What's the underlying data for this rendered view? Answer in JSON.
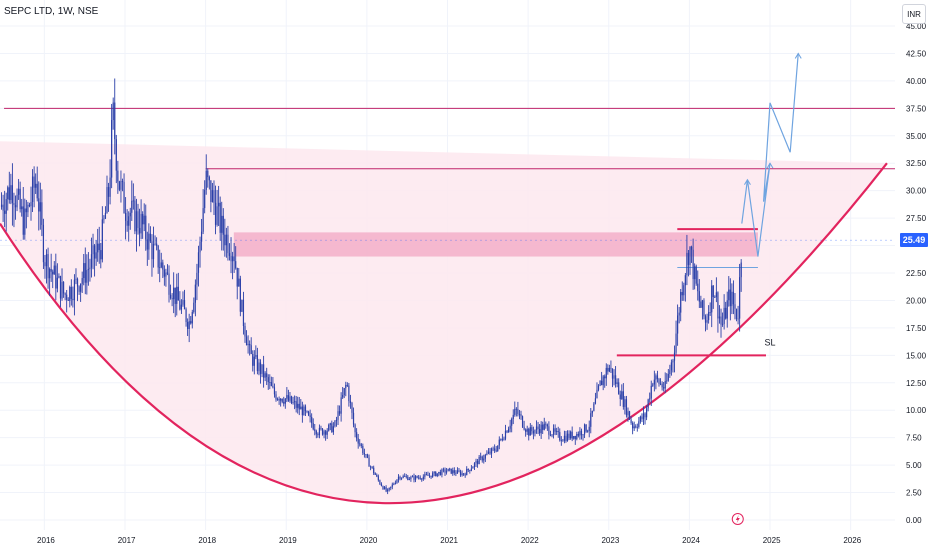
{
  "header": {
    "title": "SEPC LTD, 1W, NSE",
    "currency": "INR",
    "last_price": "25.49"
  },
  "colors": {
    "candle": "#2a3fa8",
    "cup_line": "#e2245e",
    "cup_fill": "#fde7ee",
    "zone": "#f2a7c3",
    "hline": "#c0246a",
    "projection": "#6fa4e0",
    "grid": "#f0f3fa",
    "price_tag": "#2962ff"
  },
  "chart_data": {
    "type": "candlestick",
    "title": "SEPC LTD, 1W, NSE",
    "x_ticks": [
      "2016",
      "2017",
      "2018",
      "2019",
      "2020",
      "2021",
      "2022",
      "2023",
      "2024",
      "2025",
      "2026"
    ],
    "y_ticks": [
      "0.00",
      "2.50",
      "5.00",
      "7.50",
      "10.00",
      "12.50",
      "15.00",
      "17.50",
      "20.00",
      "22.50",
      "25.00",
      "27.50",
      "30.00",
      "32.50",
      "35.00",
      "37.50",
      "40.00",
      "42.50",
      "45.00"
    ],
    "ylim": [
      0,
      45
    ],
    "xlim": [
      2015.45,
      2026.55
    ],
    "price_path": [
      [
        2015.45,
        28.5
      ],
      [
        2015.6,
        30.5
      ],
      [
        2015.75,
        27.0
      ],
      [
        2015.9,
        31.0
      ],
      [
        2016.0,
        24.0
      ],
      [
        2016.1,
        22.5
      ],
      [
        2016.25,
        20.5
      ],
      [
        2016.4,
        21.5
      ],
      [
        2016.55,
        23.0
      ],
      [
        2016.7,
        25.0
      ],
      [
        2016.8,
        30.0
      ],
      [
        2016.85,
        37.0
      ],
      [
        2016.92,
        31.0
      ],
      [
        2017.0,
        28.5
      ],
      [
        2017.2,
        27.0
      ],
      [
        2017.35,
        24.5
      ],
      [
        2017.5,
        22.5
      ],
      [
        2017.65,
        20.0
      ],
      [
        2017.8,
        18.0
      ],
      [
        2017.9,
        23.0
      ],
      [
        2018.0,
        31.0
      ],
      [
        2018.1,
        29.0
      ],
      [
        2018.2,
        26.5
      ],
      [
        2018.35,
        24.5
      ],
      [
        2018.45,
        19.0
      ],
      [
        2018.55,
        15.0
      ],
      [
        2018.7,
        13.5
      ],
      [
        2018.85,
        11.5
      ],
      [
        2019.0,
        11.0
      ],
      [
        2019.2,
        10.0
      ],
      [
        2019.4,
        8.0
      ],
      [
        2019.6,
        8.5
      ],
      [
        2019.75,
        12.5
      ],
      [
        2019.85,
        8.0
      ],
      [
        2020.0,
        5.5
      ],
      [
        2020.15,
        3.5
      ],
      [
        2020.25,
        2.5
      ],
      [
        2020.4,
        4.0
      ],
      [
        2020.55,
        3.8
      ],
      [
        2020.75,
        4.0
      ],
      [
        2021.0,
        4.5
      ],
      [
        2021.2,
        4.2
      ],
      [
        2021.4,
        5.5
      ],
      [
        2021.6,
        6.5
      ],
      [
        2021.75,
        8.5
      ],
      [
        2021.85,
        10.0
      ],
      [
        2022.0,
        8.0
      ],
      [
        2022.2,
        8.5
      ],
      [
        2022.4,
        7.5
      ],
      [
        2022.6,
        7.8
      ],
      [
        2022.75,
        8.5
      ],
      [
        2022.9,
        12.5
      ],
      [
        2023.0,
        14.0
      ],
      [
        2023.15,
        11.5
      ],
      [
        2023.3,
        8.5
      ],
      [
        2023.45,
        9.5
      ],
      [
        2023.55,
        13.0
      ],
      [
        2023.7,
        12.0
      ],
      [
        2023.8,
        15.0
      ],
      [
        2023.9,
        21.0
      ],
      [
        2024.0,
        25.0
      ],
      [
        2024.1,
        20.5
      ],
      [
        2024.2,
        18.0
      ],
      [
        2024.3,
        21.5
      ],
      [
        2024.4,
        17.5
      ],
      [
        2024.5,
        20.5
      ],
      [
        2024.6,
        18.5
      ],
      [
        2024.65,
        25.49
      ]
    ],
    "horizontal_lines": [
      {
        "price": 37.5,
        "from": 2015.5,
        "to": 2026.55
      },
      {
        "price": 32.0,
        "from": 2018.0,
        "to": 2026.55
      },
      {
        "price": 26.5,
        "from": 2023.85,
        "to": 2024.85
      },
      {
        "price": 15.0,
        "from": 2023.1,
        "to": 2024.95
      },
      {
        "price": 23.0,
        "from": 2023.85,
        "to": 2024.85
      }
    ],
    "resistance_zone": {
      "from": 2018.35,
      "to": 2024.85,
      "low": 24.0,
      "high": 26.2
    },
    "cup_curve": [
      [
        2015.45,
        27.0
      ],
      [
        2020.55,
        1.6
      ],
      [
        2026.45,
        32.5
      ]
    ],
    "cup_rim": [
      [
        2015.45,
        34.5
      ],
      [
        2026.45,
        32.5
      ]
    ],
    "projection_path": [
      [
        2024.65,
        27.0
      ],
      [
        2024.72,
        31.0
      ],
      [
        2024.85,
        24.0
      ],
      [
        2025.0,
        32.5
      ],
      [
        2024.92,
        29.0
      ],
      [
        2025.0,
        38.0
      ],
      [
        2025.25,
        33.5
      ],
      [
        2025.35,
        42.5
      ]
    ],
    "annotations": [
      {
        "text": "SL",
        "x": 2025.0,
        "y": 15.9
      }
    ]
  }
}
